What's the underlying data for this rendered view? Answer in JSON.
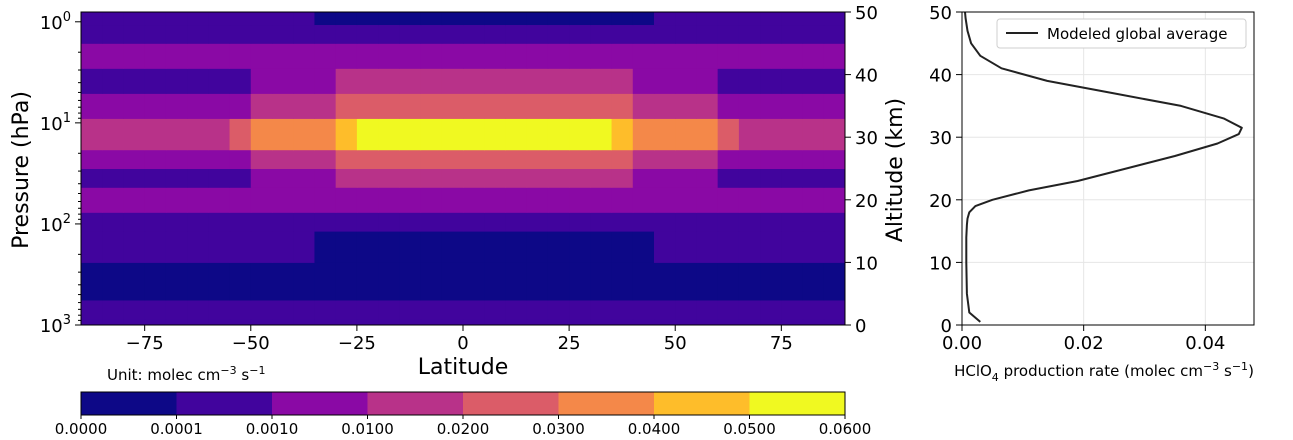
{
  "chart_data": [
    {
      "type": "heatmap",
      "xlabel": "Latitude",
      "ylabel_left": "Pressure (hPa)",
      "ylabel_right": "Altitude (km)",
      "xticks": [
        "−75",
        "−50",
        "−25",
        "0",
        "25",
        "50",
        "75"
      ],
      "xtick_values": [
        -75,
        -50,
        -25,
        0,
        25,
        50,
        75
      ],
      "xlim": [
        -90,
        90
      ],
      "yscale_left": "log",
      "ylim_left_hPa": [
        1000,
        0.8
      ],
      "yticks_left": [
        {
          "base": "10",
          "exp": "0",
          "value_hPa": 1
        },
        {
          "base": "10",
          "exp": "1",
          "value_hPa": 10
        },
        {
          "base": "10",
          "exp": "2",
          "value_hPa": 100
        },
        {
          "base": "10",
          "exp": "3",
          "value_hPa": 1000
        }
      ],
      "yticks_right": [
        "0",
        "10",
        "20",
        "30",
        "40",
        "50"
      ],
      "ylim_right_km": [
        0,
        50
      ],
      "unit_text": {
        "prefix": "Unit: molec cm",
        "exp1": "−3",
        "mid": " s",
        "exp2": "−1"
      },
      "colorbar": {
        "bounds": [
          "0.0000",
          "0.0001",
          "0.0010",
          "0.0100",
          "0.0200",
          "0.0300",
          "0.0400",
          "0.0500",
          "0.0600"
        ],
        "colors": [
          "#0d0887",
          "#41049d",
          "#8a09a5",
          "#b83289",
          "#db5c68",
          "#f48849",
          "#febd2a",
          "#f0f921"
        ]
      },
      "levels_by_altitude_km": [
        {
          "alt": [
            0,
            1
          ],
          "level": 1
        },
        {
          "alt": [
            1,
            4
          ],
          "level": 1
        },
        {
          "alt": [
            4,
            10
          ],
          "level": 0
        },
        {
          "alt": [
            10,
            15
          ],
          "level": 0
        },
        {
          "alt": [
            15,
            18
          ],
          "level": 1
        },
        {
          "alt": [
            18,
            22
          ],
          "level": 2
        },
        {
          "alt": [
            22,
            25
          ],
          "level": 3
        },
        {
          "alt": [
            25,
            28
          ],
          "level": 4
        },
        {
          "alt": [
            28,
            33
          ],
          "level": 6
        },
        {
          "alt": [
            33,
            37
          ],
          "level": 4
        },
        {
          "alt": [
            37,
            41
          ],
          "level": 3
        },
        {
          "alt": [
            41,
            45
          ],
          "level": 2
        },
        {
          "alt": [
            45,
            48
          ],
          "level": 1
        },
        {
          "alt": [
            48,
            50
          ],
          "level": 0
        }
      ]
    },
    {
      "type": "line",
      "xlabel": {
        "main": "HClO",
        "sub": "4",
        "rest": " production rate (molec cm",
        "exp1": "−3",
        "mid": " s",
        "exp2": "−1",
        "end": ")"
      },
      "ylabel": "Altitude (km)",
      "xlim": [
        0,
        0.048
      ],
      "ylim": [
        0,
        50
      ],
      "xticks": [
        "0.00",
        "0.02",
        "0.04"
      ],
      "xtick_values": [
        0,
        0.02,
        0.04
      ],
      "yticks": [
        "0",
        "10",
        "20",
        "30",
        "40",
        "50"
      ],
      "ytick_values": [
        0,
        10,
        20,
        30,
        40,
        50
      ],
      "grid": true,
      "legend_placement": "top-right",
      "series": [
        {
          "name": "Modeled global average",
          "color": "#222222",
          "x": [
            0.003,
            0.0012,
            0.0008,
            0.0007,
            0.0007,
            0.0008,
            0.0009,
            0.0012,
            0.0022,
            0.005,
            0.011,
            0.019,
            0.027,
            0.035,
            0.042,
            0.0455,
            0.046,
            0.043,
            0.036,
            0.025,
            0.014,
            0.0065,
            0.003,
            0.0015,
            0.0009,
            0.0006,
            0.0005
          ],
          "y": [
            0.5,
            2,
            5,
            10,
            14,
            16,
            17,
            18,
            19,
            20,
            21.5,
            23,
            25,
            27,
            29,
            30.5,
            31.5,
            33,
            35,
            37,
            39,
            41,
            43,
            45,
            47,
            49,
            50
          ]
        }
      ]
    }
  ]
}
